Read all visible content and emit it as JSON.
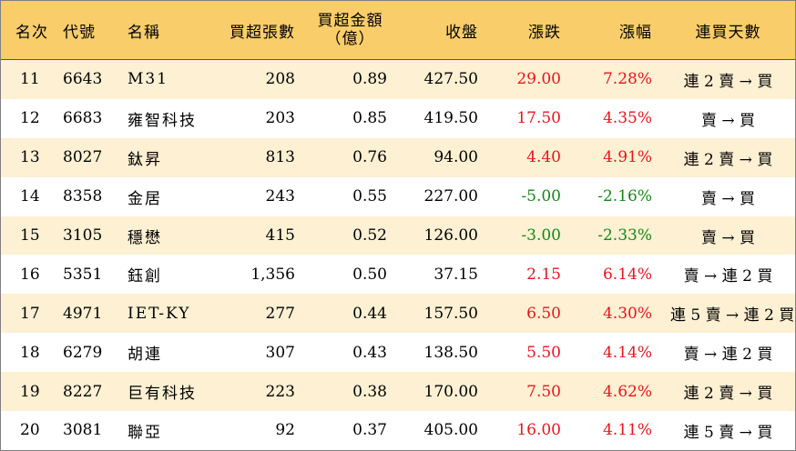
{
  "headers": {
    "rank": "名次",
    "code": "代號",
    "name": "名稱",
    "buy_lots": "買超張數",
    "buy_amount": "買超金額\n（億）",
    "close": "收盤",
    "change": "漲跌",
    "change_pct": "漲幅",
    "streak": "連買天數"
  },
  "rows": [
    {
      "rank": "11",
      "code": "6643",
      "name": "M31",
      "buy_lots": "208",
      "buy_amount": "0.89",
      "close": "427.50",
      "change": "29.00",
      "change_pct": "7.28%",
      "streak": "連 2 賣 → 買",
      "trend": "up"
    },
    {
      "rank": "12",
      "code": "6683",
      "name": "雍智科技",
      "buy_lots": "203",
      "buy_amount": "0.85",
      "close": "419.50",
      "change": "17.50",
      "change_pct": "4.35%",
      "streak": "賣 → 買",
      "trend": "up"
    },
    {
      "rank": "13",
      "code": "8027",
      "name": "鈦昇",
      "buy_lots": "813",
      "buy_amount": "0.76",
      "close": "94.00",
      "change": "4.40",
      "change_pct": "4.91%",
      "streak": "連 2 賣 → 買",
      "trend": "up"
    },
    {
      "rank": "14",
      "code": "8358",
      "name": "金居",
      "buy_lots": "243",
      "buy_amount": "0.55",
      "close": "227.00",
      "change": "-5.00",
      "change_pct": "-2.16%",
      "streak": "賣 → 買",
      "trend": "down"
    },
    {
      "rank": "15",
      "code": "3105",
      "name": "穩懋",
      "buy_lots": "415",
      "buy_amount": "0.52",
      "close": "126.00",
      "change": "-3.00",
      "change_pct": "-2.33%",
      "streak": "賣 → 買",
      "trend": "down"
    },
    {
      "rank": "16",
      "code": "5351",
      "name": "鈺創",
      "buy_lots": "1,356",
      "buy_amount": "0.50",
      "close": "37.15",
      "change": "2.15",
      "change_pct": "6.14%",
      "streak": "賣 → 連 2 買",
      "trend": "up"
    },
    {
      "rank": "17",
      "code": "4971",
      "name": "IET-KY",
      "buy_lots": "277",
      "buy_amount": "0.44",
      "close": "157.50",
      "change": "6.50",
      "change_pct": "4.30%",
      "streak": "連 5 賣 → 連 2 買",
      "trend": "up"
    },
    {
      "rank": "18",
      "code": "6279",
      "name": "胡連",
      "buy_lots": "307",
      "buy_amount": "0.43",
      "close": "138.50",
      "change": "5.50",
      "change_pct": "4.14%",
      "streak": "賣 → 連 2 買",
      "trend": "up"
    },
    {
      "rank": "19",
      "code": "8227",
      "name": "巨有科技",
      "buy_lots": "223",
      "buy_amount": "0.38",
      "close": "170.00",
      "change": "7.50",
      "change_pct": "4.62%",
      "streak": "連 2 賣 → 買",
      "trend": "up"
    },
    {
      "rank": "20",
      "code": "3081",
      "name": "聯亞",
      "buy_lots": "92",
      "buy_amount": "0.37",
      "close": "405.00",
      "change": "16.00",
      "change_pct": "4.11%",
      "streak": "連 5 賣 → 買",
      "trend": "up"
    }
  ],
  "colors": {
    "header_bg": "#f9cd6a",
    "stripe": "#fdf0d3",
    "up": "#e8141b",
    "down": "#138a13"
  }
}
